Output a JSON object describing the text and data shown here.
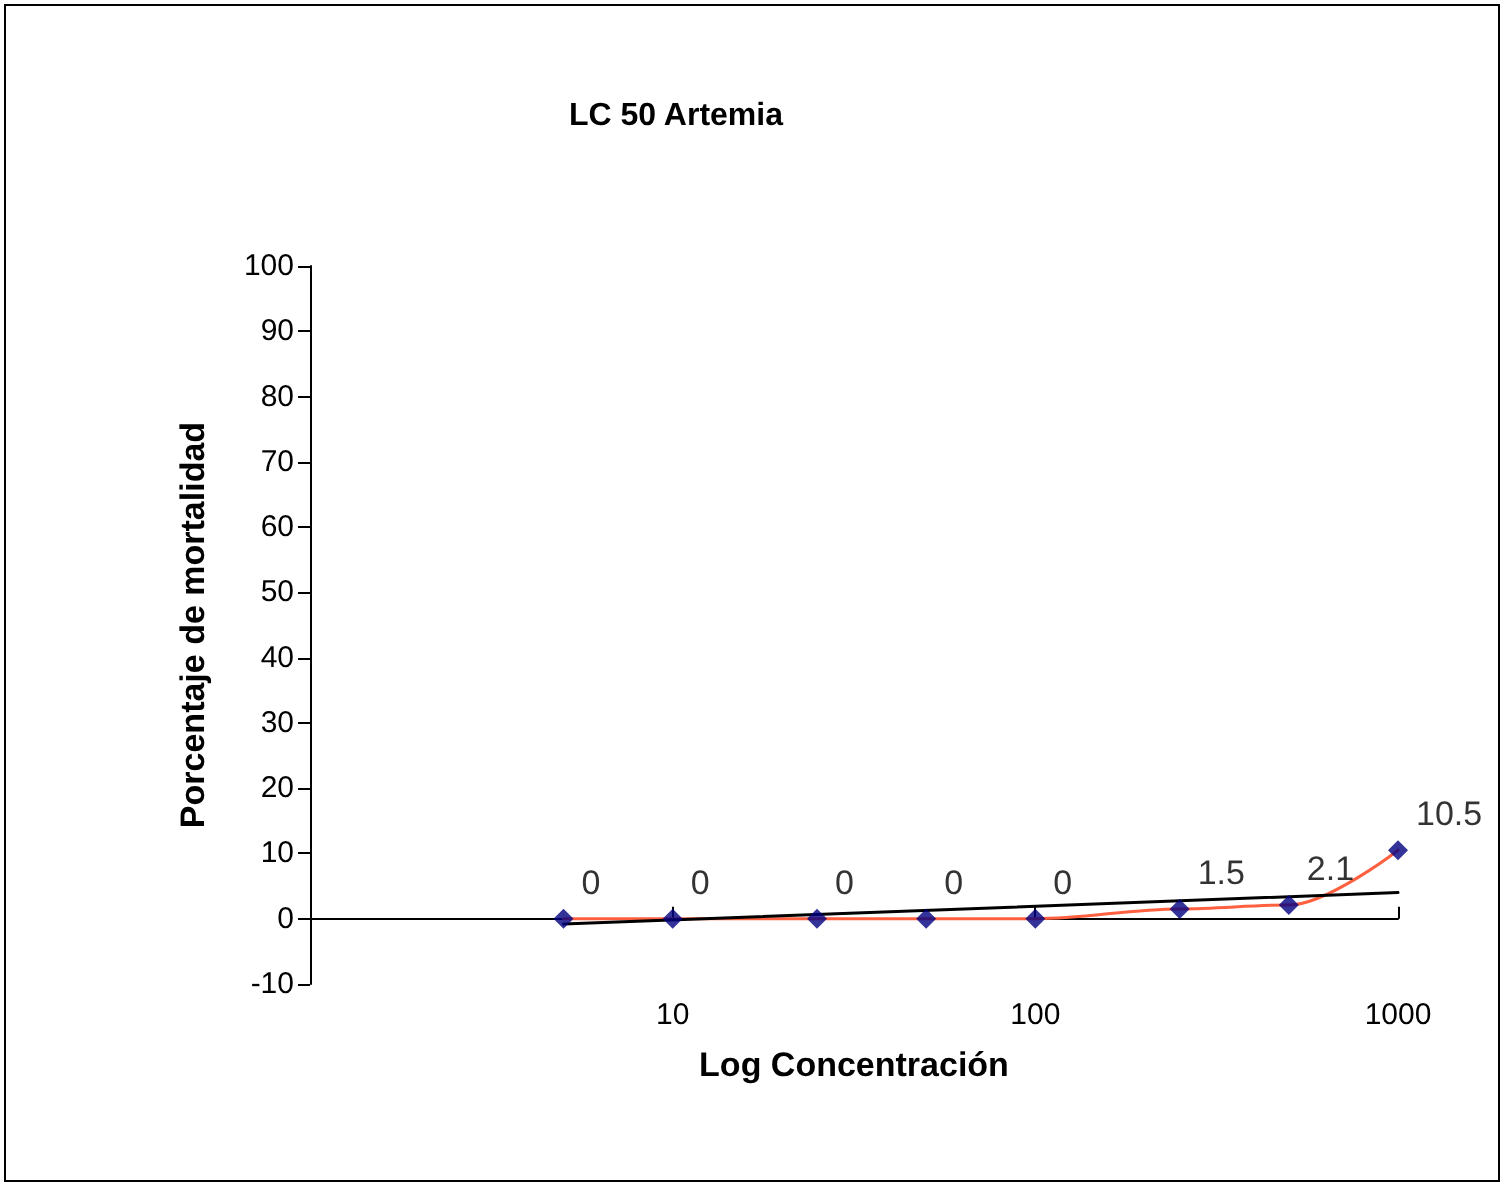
{
  "chart_data": {
    "type": "scatter",
    "title": "LC 50 Artemia",
    "xlabel": "Log Concentración",
    "ylabel": "Porcentaje de mortalidad",
    "x": [
      5,
      10,
      25,
      50,
      100,
      250,
      500,
      1000
    ],
    "series": [
      {
        "type": "scatter",
        "color": "#000080",
        "marker": "diamond",
        "values": [
          0,
          0,
          0,
          0,
          0,
          1.5,
          2.1,
          10.5
        ],
        "value_labels": [
          "0",
          "0",
          "0",
          "0",
          "0",
          "1.5",
          "2.1",
          "10.5"
        ]
      },
      {
        "type": "line",
        "color": "#ff6040",
        "marker": "none",
        "line_style": "solid",
        "values": [
          0,
          0,
          0,
          0,
          0,
          1.5,
          2.1,
          10.5
        ]
      },
      {
        "type": "line",
        "color": "#000000",
        "marker": "none",
        "line_style": "solid",
        "x": [
          5,
          1000
        ],
        "values": [
          -0.8,
          4
        ]
      }
    ],
    "log": "x",
    "xlim": [
      1,
      1000
    ],
    "xticks": [
      {
        "value": 1,
        "label": null
      },
      10,
      100,
      1000
    ],
    "ylim": [
      -10,
      100
    ],
    "yticks": [
      -10,
      0,
      10,
      20,
      30,
      40,
      50,
      60,
      70,
      80,
      90,
      100
    ]
  }
}
